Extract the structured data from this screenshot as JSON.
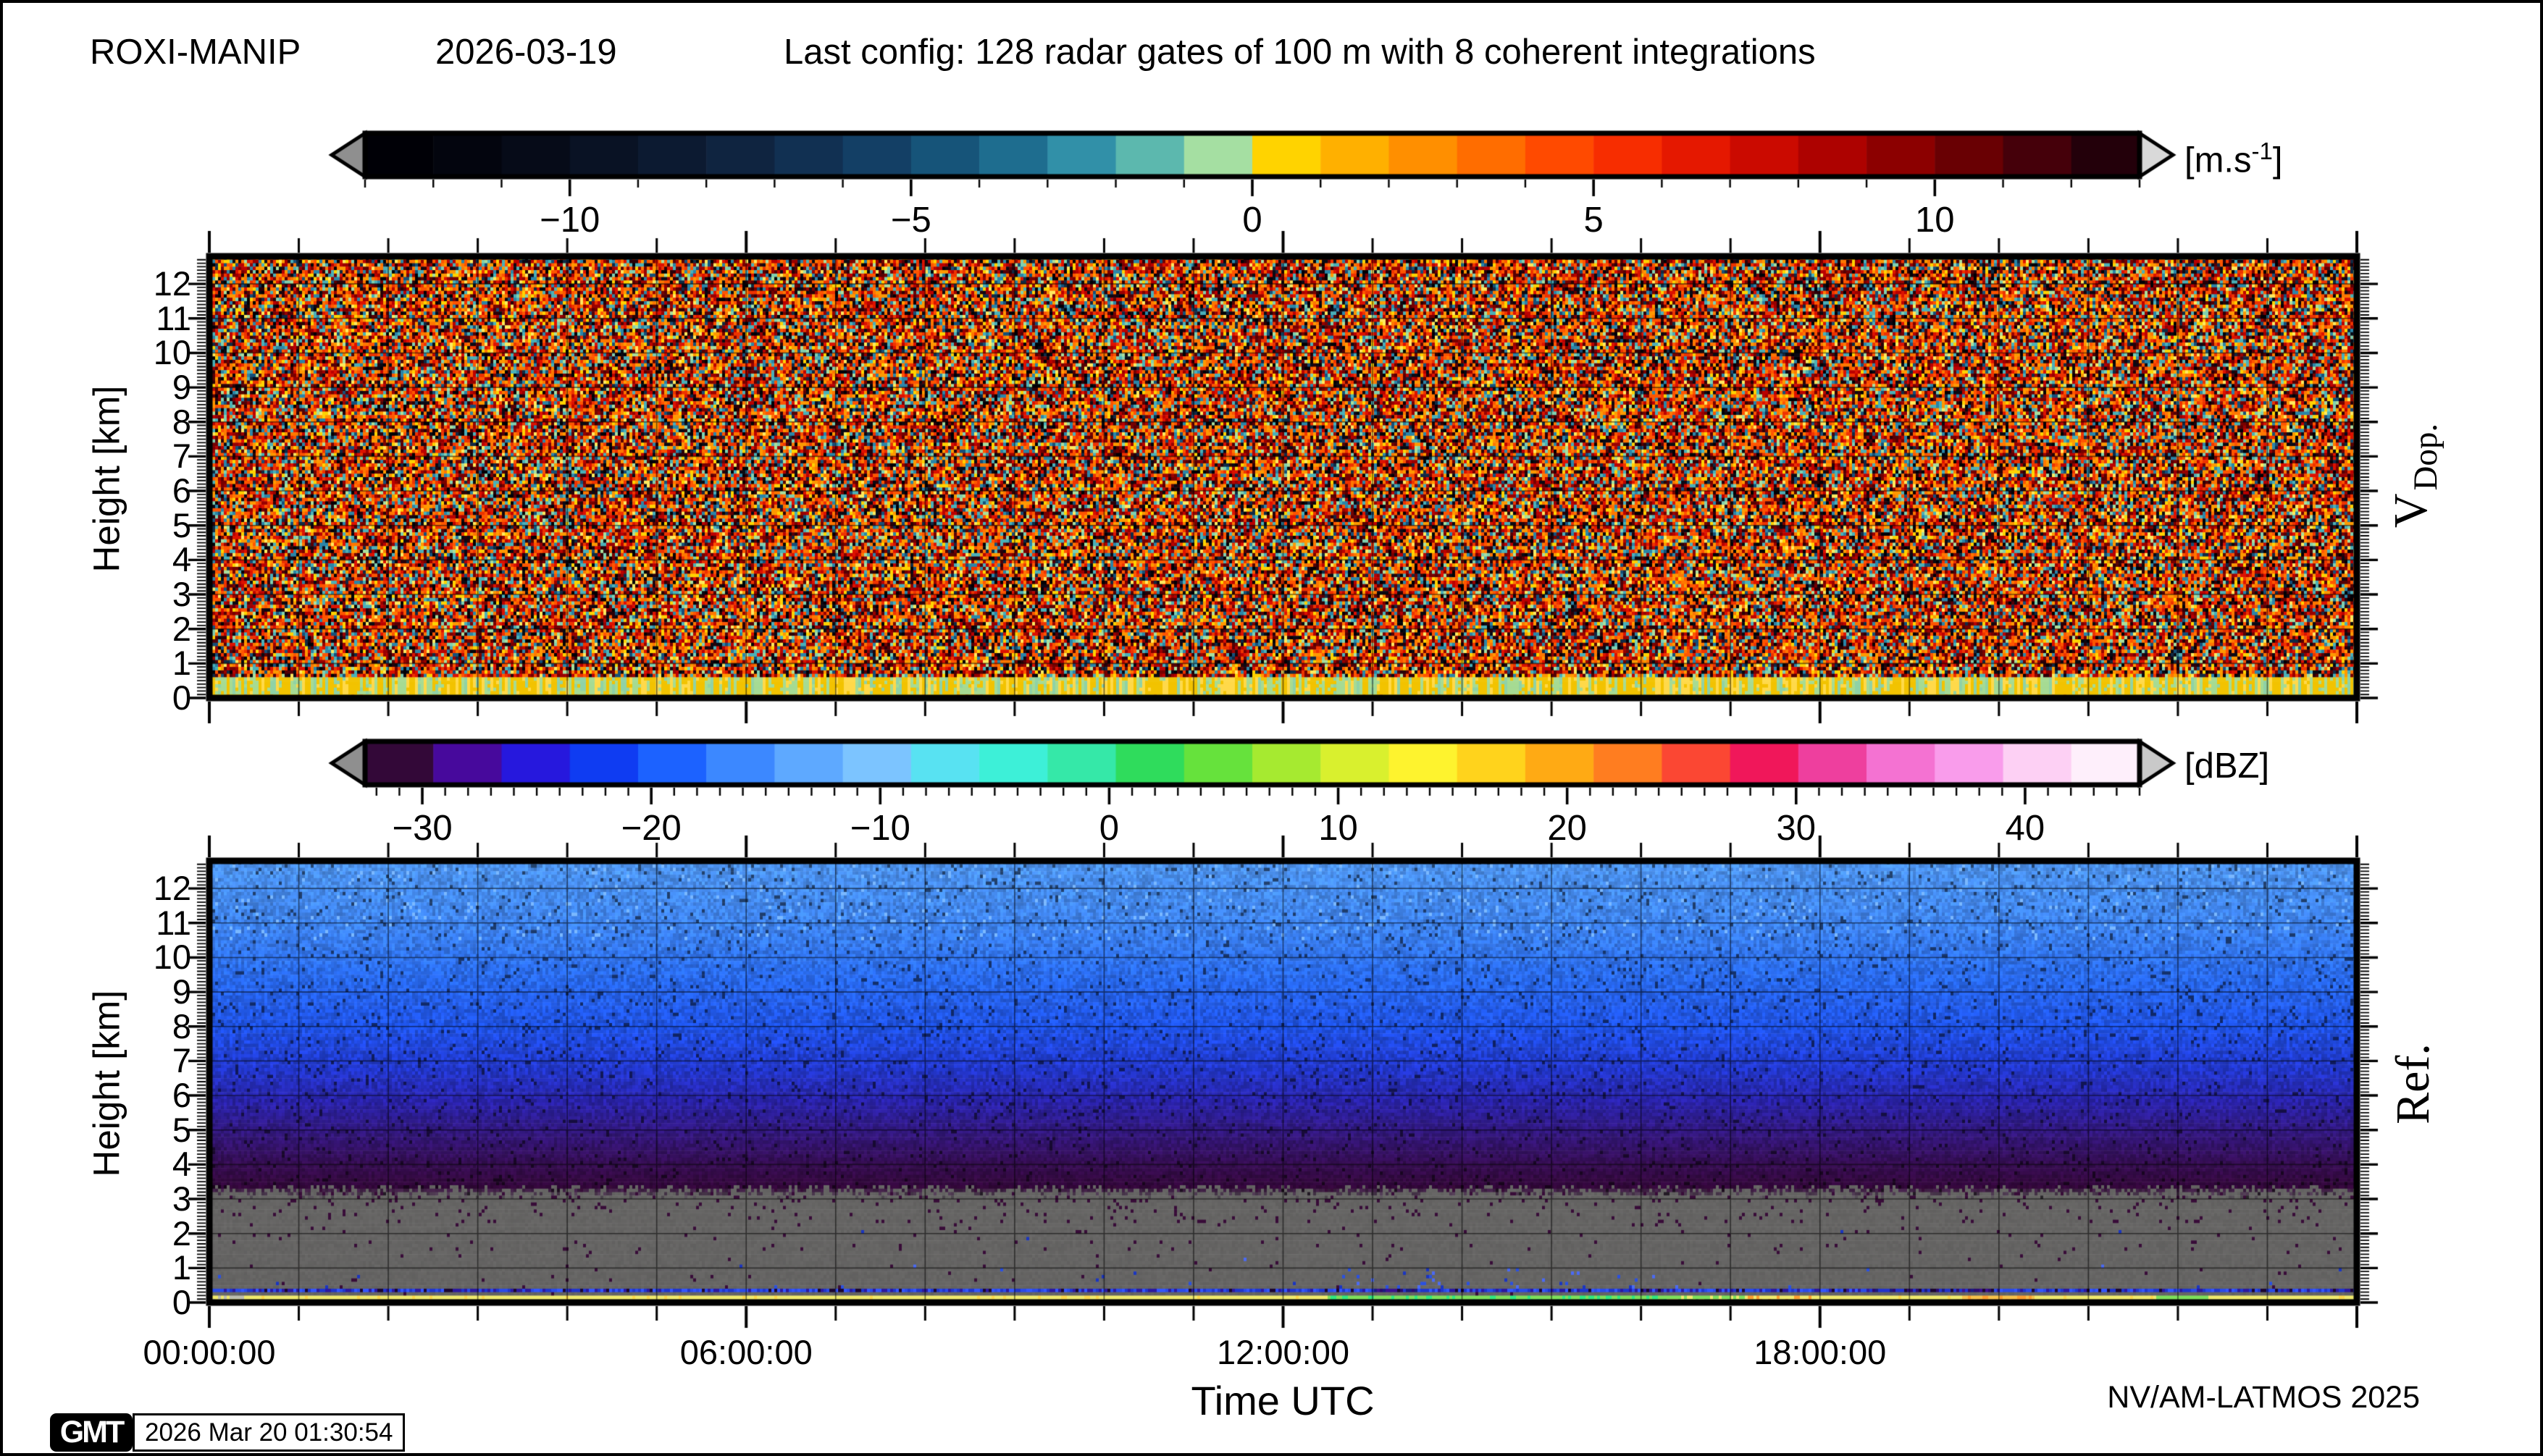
{
  "header": {
    "station": "ROXI-MANIP",
    "date": "2026-03-19",
    "config": "Last config: 128 radar gates of 100 m with 8 coherent integrations"
  },
  "footer": {
    "time_axis_label": "Time UTC",
    "credit": "NV/AM-LATMOS 2025",
    "gmt_logo": "GMT",
    "gmt_timestamp": "2026 Mar 20 01:30:54"
  },
  "axes": {
    "height_axis_label": "Height [km]",
    "y_tick_labels": [
      "0",
      "1",
      "2",
      "3",
      "4",
      "5",
      "6",
      "7",
      "8",
      "9",
      "10",
      "11",
      "12"
    ],
    "x_ticks": [
      {
        "hour": 0,
        "label": "00:00:00"
      },
      {
        "hour": 6,
        "label": "06:00:00"
      },
      {
        "hour": 12,
        "label": "12:00:00"
      },
      {
        "hour": 18,
        "label": "18:00:00"
      }
    ]
  },
  "panels": {
    "top": {
      "side_label_main": "V",
      "side_label_sub": "Dop."
    },
    "bottom": {
      "side_label": "Ref."
    }
  },
  "chart_data": [
    {
      "type": "heatmap",
      "name": "doppler_velocity",
      "side_label": "V Dop.",
      "unit_parts": {
        "pre": "[m.s",
        "sup": "-1",
        "post": "]"
      },
      "x_axis": {
        "label": "Time UTC",
        "range_hours": [
          0,
          24
        ],
        "tick_hours": [
          0,
          6,
          12,
          18
        ],
        "tick_labels": [
          "00:00:00",
          "06:00:00",
          "12:00:00",
          "18:00:00"
        ],
        "gridline_interval_hours": 1
      },
      "y_axis": {
        "label": "Height [km]",
        "range_km": [
          0,
          12.8
        ],
        "tick_interval_km": 1,
        "minor_tick_interval_km": 0.1
      },
      "colorbar": {
        "range": [
          -13,
          13
        ],
        "tick_values": [
          -10,
          -5,
          0,
          5,
          10
        ],
        "tick_labels": [
          "−10",
          "−5",
          "0",
          "5",
          "10"
        ],
        "minor_tick_step": 1,
        "left_arrow_color": "#8f8f8f",
        "right_arrow_color": "#d9d9d9",
        "segment_colors": [
          "#000006",
          "#03050e",
          "#060b18",
          "#091224",
          "#0c1a31",
          "#0f2440",
          "#113052",
          "#133f65",
          "#165479",
          "#1e6d8f",
          "#3190a8",
          "#5cb8ae",
          "#a5dfa2",
          "#ffd300",
          "#ffb000",
          "#ff8f00",
          "#ff6d00",
          "#ff4a00",
          "#f72d00",
          "#e51800",
          "#cb0a00",
          "#ad0200",
          "#8c0000",
          "#690003",
          "#45000a",
          "#23000a"
        ]
      },
      "content_summary": "Uniform random speckle of aliased Doppler velocities over full day; yellow and pale-green streaked band below 0.6 km; solid yellow strip at 0 km."
    },
    {
      "type": "heatmap",
      "name": "reflectivity",
      "side_label": "Ref.",
      "unit_parts": {
        "pre": "[dBZ]",
        "sup": "",
        "post": ""
      },
      "x_axis": {
        "label": "Time UTC",
        "range_hours": [
          0,
          24
        ],
        "tick_hours": [
          0,
          6,
          12,
          18
        ],
        "tick_labels": [
          "00:00:00",
          "06:00:00",
          "12:00:00",
          "18:00:00"
        ],
        "gridline_interval_hours": 1
      },
      "y_axis": {
        "label": "Height [km]",
        "range_km": [
          0,
          12.8
        ],
        "tick_interval_km": 1,
        "minor_tick_interval_km": 0.1
      },
      "colorbar": {
        "range": [
          -32.5,
          45
        ],
        "tick_values": [
          -30,
          -20,
          -10,
          0,
          10,
          20,
          30,
          40
        ],
        "tick_labels": [
          "−30",
          "−20",
          "−10",
          "0",
          "10",
          "20",
          "30",
          "40"
        ],
        "minor_tick_step": 1,
        "left_arrow_color": "#8f8f8f",
        "right_arrow_color": "#c9c9c9",
        "segment_colors": [
          "#330838",
          "#47099c",
          "#2618dd",
          "#0f3cf2",
          "#1c62ff",
          "#3c88ff",
          "#5ea9ff",
          "#7cc4ff",
          "#58e2f2",
          "#3df0d8",
          "#35e8a8",
          "#2fdc5c",
          "#66e23c",
          "#a6ea30",
          "#d9f02e",
          "#fef32e",
          "#ffd31c",
          "#ffaa14",
          "#ff7d20",
          "#fb4733",
          "#f0175a",
          "#ee3f9e",
          "#f472d2",
          "#f99ceb",
          "#fdd0f4",
          "#feeffb"
        ]
      },
      "content_summary": "Noise-floor reflectivity decreasing with height: light blue at 12.8 km grading through blue, indigo and dark purple to uniform gray below 3 km; blue boundary-layer stripe near 0.35 km with blue spikes 13:00-16:30; yellow surface strip turning green 12:30-16:30 with orange patches near 17:30 and 20:00."
    }
  ],
  "noise_style": {
    "vdop_pool": [
      [
        "#ffd300",
        2
      ],
      [
        "#ff9900",
        3
      ],
      [
        "#ff7700",
        3
      ],
      [
        "#ff5500",
        3
      ],
      [
        "#ee3300",
        3
      ],
      [
        "#dd1100",
        2
      ],
      [
        "#bb0000",
        2
      ],
      [
        "#990000",
        2
      ],
      [
        "#770000",
        2
      ],
      [
        "#550005",
        2
      ],
      [
        "#2a0008",
        2
      ],
      [
        "#0a0a14",
        2
      ],
      [
        "#000006",
        2
      ],
      [
        "#102a44",
        1
      ],
      [
        "#15507a",
        1
      ],
      [
        "#2a85a8",
        2
      ],
      [
        "#4ab0b8",
        2
      ],
      [
        "#7fd0b0",
        1
      ],
      [
        "#aadf9c",
        1
      ],
      [
        "#ffe95e",
        1
      ]
    ],
    "vdop_band_streaks": [
      [
        "#f2c300",
        40
      ],
      [
        "#ffd94a",
        20
      ],
      [
        "#a6db93",
        28
      ],
      [
        "#8fd2a6",
        12
      ]
    ],
    "vdop_surface": [
      "#ffe205",
      "#ff9900"
    ],
    "ref_gradient_stops": [
      [
        12.8,
        "#4e95f2"
      ],
      [
        11.0,
        "#3f85f2"
      ],
      [
        9.5,
        "#2a6cf0"
      ],
      [
        8.0,
        "#1f53e8"
      ],
      [
        6.8,
        "#2238cf"
      ],
      [
        5.8,
        "#2a22a8"
      ],
      [
        4.8,
        "#331678"
      ],
      [
        4.0,
        "#360d52"
      ],
      [
        3.35,
        "#33073a"
      ],
      [
        3.0,
        "#5f5f5f"
      ],
      [
        0.0,
        "#5f5f5f"
      ]
    ],
    "ref_gray": "#656463",
    "ref_speckle": "#380c38",
    "ref_fleck_light": "#7ab8ff",
    "ref_stripe_blue": [
      "#1f35cc",
      "#2a4ae8",
      "#2a18a0",
      "#3355ff"
    ],
    "ref_stripe_dark": [
      "#2a0a70",
      "#3a1090",
      "#1a1a80",
      "#2233cc"
    ],
    "ref_spike_blue": [
      "#2a50e0",
      "#1a35c0",
      "#4a6af5"
    ],
    "ref_strip_yellow": "#f0ea6d",
    "ref_strip_green": [
      "#7de05a",
      "#2ee87f"
    ],
    "ref_strip_orange": [
      "#f7c24a",
      "#ff9e2e"
    ],
    "ref_strip_pale": "#bdbdb0"
  }
}
